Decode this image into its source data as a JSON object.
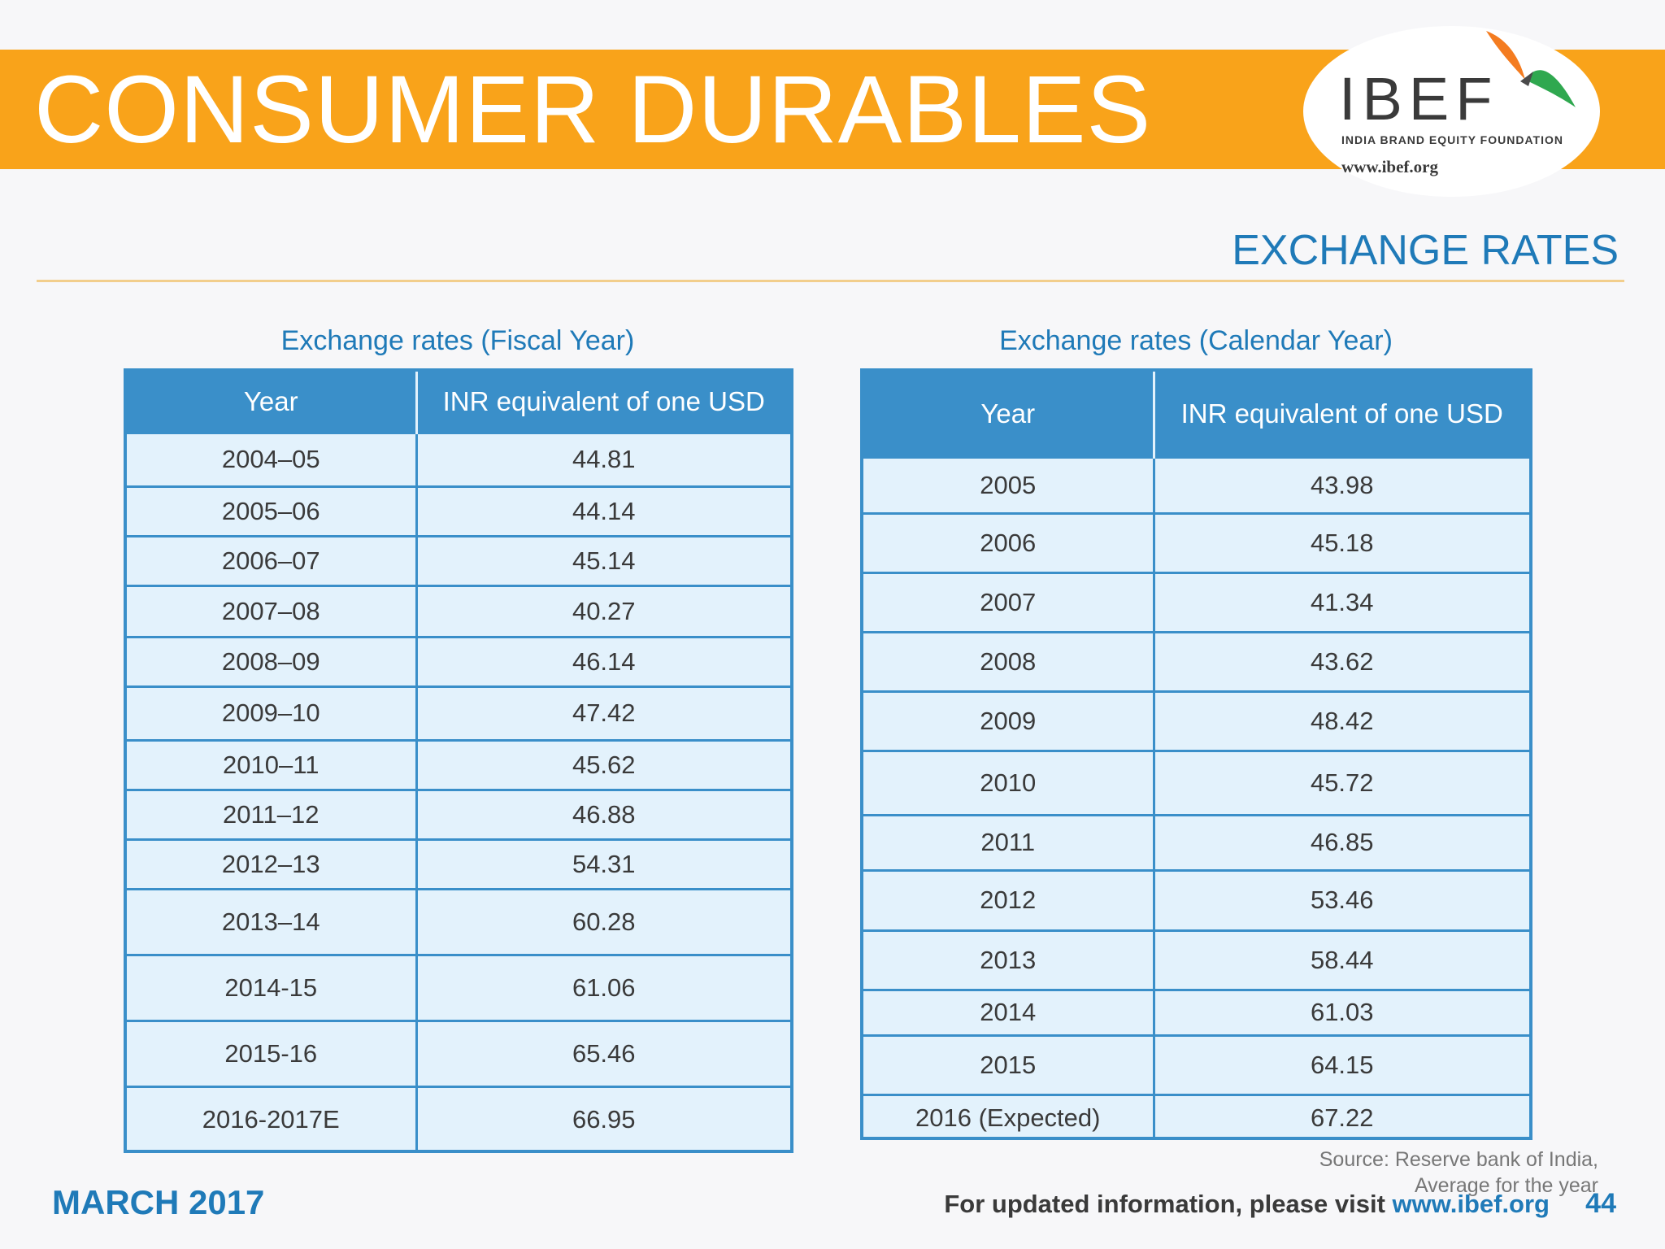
{
  "header": {
    "title": "CONSUMER DURABLES",
    "logo_text": "IBEF",
    "logo_subtitle": "INDIA BRAND EQUITY FOUNDATION",
    "logo_url": "www.ibef.org"
  },
  "section_title": "EXCHANGE RATES",
  "fiscal": {
    "caption": "Exchange rates (Fiscal Year)",
    "headers": [
      "Year",
      "INR equivalent of one USD"
    ],
    "rows": [
      [
        "2004–05",
        "44.81"
      ],
      [
        "2005–06",
        "44.14"
      ],
      [
        "2006–07",
        "45.14"
      ],
      [
        "2007–08",
        "40.27"
      ],
      [
        "2008–09",
        "46.14"
      ],
      [
        "2009–10",
        "47.42"
      ],
      [
        "2010–11",
        "45.62"
      ],
      [
        "2011–12",
        "46.88"
      ],
      [
        "2012–13",
        "54.31"
      ],
      [
        "2013–14",
        "60.28"
      ],
      [
        "2014-15",
        "61.06"
      ],
      [
        "2015-16",
        "65.46"
      ],
      [
        "2016-2017E",
        "66.95"
      ]
    ]
  },
  "calendar": {
    "caption": "Exchange rates (Calendar Year)",
    "headers": [
      "Year",
      "INR equivalent of one USD"
    ],
    "rows": [
      [
        "2005",
        "43.98"
      ],
      [
        "2006",
        "45.18"
      ],
      [
        "2007",
        "41.34"
      ],
      [
        "2008",
        "43.62"
      ],
      [
        "2009",
        "48.42"
      ],
      [
        "2010",
        "45.72"
      ],
      [
        "2011",
        "46.85"
      ],
      [
        "2012",
        "53.46"
      ],
      [
        "2013",
        "58.44"
      ],
      [
        "2014",
        "61.03"
      ],
      [
        "2015",
        "64.15"
      ],
      [
        "2016 (Expected)",
        "67.22"
      ]
    ]
  },
  "source": {
    "line1": "Source: Reserve bank of India,",
    "line2": "Average for the year"
  },
  "footer": {
    "date": "MARCH 2017",
    "visit_text": "For updated information, please visit",
    "visit_url": "www.ibef.org",
    "page_number": "44"
  },
  "colors": {
    "banner": "#f9a31a",
    "accent_blue": "#1f7ab8",
    "table_header": "#3a8fc9",
    "table_cell": "#e3f2fc"
  }
}
